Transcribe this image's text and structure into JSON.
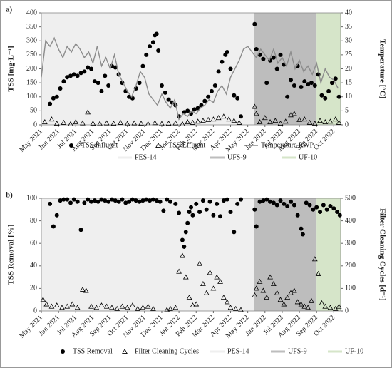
{
  "chart_data": [
    {
      "type": "combo",
      "label": "a)",
      "ylabel": "TSS [mg·L⁻¹]",
      "y2label": "Temperature [°C]",
      "xlim": [
        0,
        17.4
      ],
      "ylim": [
        0,
        400
      ],
      "yticks": [
        0,
        50,
        100,
        150,
        200,
        250,
        300,
        350,
        400
      ],
      "y2lim": [
        0,
        40
      ],
      "y2ticks": [
        0,
        5,
        10,
        15,
        20,
        25,
        30,
        35,
        40
      ],
      "xticks": [
        {
          "value": 0,
          "label": "May 2021"
        },
        {
          "value": 1,
          "label": "Jun 2021"
        },
        {
          "value": 2,
          "label": "Jul 2021"
        },
        {
          "value": 3,
          "label": "Aug 2021"
        },
        {
          "value": 4,
          "label": "Sep 2021"
        },
        {
          "value": 5,
          "label": "Oct 2021"
        },
        {
          "value": 6,
          "label": "Nov 2021"
        },
        {
          "value": 7,
          "label": "Dec 2021"
        },
        {
          "value": 8,
          "label": "Jan 2022"
        },
        {
          "value": 9,
          "label": "Feb 2022"
        },
        {
          "value": 10,
          "label": "Mar 2022"
        },
        {
          "value": 11,
          "label": "Apr 2022"
        },
        {
          "value": 12,
          "label": "May 2022"
        },
        {
          "value": 13,
          "label": "Jun 2022"
        },
        {
          "value": 14,
          "label": "Jul 2022"
        },
        {
          "value": 15,
          "label": "Aug 2022"
        },
        {
          "value": 16,
          "label": "Sep 2022"
        },
        {
          "value": 17,
          "label": "Oct 2022"
        }
      ],
      "regions": [
        {
          "name": "PES-14",
          "color": "#efefef",
          "start": 0,
          "end": 12.37
        },
        {
          "name": "UFS-9",
          "color": "#bdbdbd",
          "start": 12.37,
          "end": 16.0
        },
        {
          "name": "UF-10",
          "color": "#d6e5c9",
          "start": 16.0,
          "end": 17.4
        }
      ],
      "series": [
        {
          "name": "TSS Influent",
          "marker": "circle",
          "color": "#000000",
          "x": [
            0.5,
            0.7,
            0.9,
            1.1,
            1.3,
            1.5,
            1.7,
            1.9,
            2.1,
            2.3,
            2.5,
            2.7,
            2.9,
            3.1,
            3.3,
            3.5,
            3.7,
            3.9,
            4.1,
            4.3,
            4.5,
            4.7,
            4.9,
            5.1,
            5.3,
            5.5,
            5.7,
            5.9,
            6.1,
            6.3,
            6.5,
            6.6,
            6.7,
            6.8,
            7.0,
            7.2,
            7.4,
            7.6,
            7.8,
            8.0,
            8.3,
            8.5,
            8.7,
            8.9,
            9.1,
            9.3,
            9.5,
            9.7,
            9.9,
            10.1,
            10.3,
            10.5,
            10.7,
            10.8,
            11.0,
            11.2,
            11.4,
            11.6,
            12.4,
            12.5,
            12.7,
            12.9,
            13.1,
            13.3,
            13.5,
            13.7,
            13.9,
            14.1,
            14.3,
            14.5,
            14.7,
            14.9,
            15.1,
            15.3,
            15.5,
            15.7,
            15.9,
            16.1,
            16.3,
            16.5,
            16.7,
            16.9,
            17.1,
            17.3
          ],
          "values": [
            75,
            95,
            100,
            130,
            155,
            170,
            175,
            180,
            175,
            185,
            190,
            205,
            200,
            155,
            150,
            120,
            175,
            140,
            210,
            205,
            180,
            150,
            120,
            100,
            95,
            130,
            150,
            210,
            250,
            280,
            295,
            320,
            325,
            265,
            140,
            115,
            90,
            80,
            70,
            30,
            45,
            50,
            40,
            55,
            60,
            70,
            85,
            100,
            120,
            140,
            190,
            225,
            250,
            260,
            200,
            105,
            95,
            30,
            360,
            270,
            250,
            235,
            150,
            230,
            240,
            200,
            250,
            215,
            100,
            160,
            140,
            210,
            135,
            155,
            145,
            150,
            140,
            180,
            105,
            95,
            120,
            150,
            165,
            100
          ]
        },
        {
          "name": "TSS Effluent",
          "marker": "triangle",
          "color": "#000000",
          "x": [
            0.2,
            0.6,
            0.9,
            1.3,
            1.7,
            2.0,
            2.4,
            2.7,
            3.0,
            3.4,
            3.8,
            4.2,
            4.6,
            5.0,
            5.4,
            5.8,
            6.2,
            6.6,
            7.0,
            7.4,
            7.8,
            8.2,
            8.5,
            8.8,
            9.1,
            9.4,
            9.7,
            10.0,
            10.3,
            10.6,
            10.9,
            11.2,
            11.5,
            12.4,
            12.5,
            12.7,
            13.0,
            13.3,
            13.6,
            13.9,
            14.2,
            14.5,
            14.7,
            15.0,
            15.3,
            15.6,
            15.9,
            16.2,
            16.5,
            16.8,
            17.1,
            17.3
          ],
          "values": [
            10,
            20,
            5,
            8,
            3,
            10,
            6,
            45,
            5,
            4,
            6,
            5,
            8,
            4,
            6,
            5,
            3,
            7,
            4,
            5,
            6,
            3,
            10,
            8,
            12,
            15,
            18,
            20,
            25,
            30,
            20,
            15,
            8,
            65,
            40,
            10,
            25,
            10,
            15,
            5,
            12,
            35,
            40,
            18,
            20,
            8,
            5,
            15,
            10,
            12,
            20,
            8
          ]
        },
        {
          "name": "Temperature RWP",
          "marker": "line",
          "color": "#8c8c8c",
          "axis": "y2",
          "x": [
            0,
            0.25,
            0.5,
            0.75,
            1,
            1.25,
            1.5,
            1.75,
            2,
            2.25,
            2.5,
            2.75,
            3,
            3.25,
            3.5,
            3.75,
            4,
            4.25,
            4.5,
            4.75,
            5,
            5.25,
            5.5,
            5.75,
            6,
            6.25,
            6.5,
            6.75,
            7,
            7.25,
            7.5,
            7.75,
            8,
            8.25,
            8.5,
            8.75,
            9,
            9.25,
            9.5,
            9.75,
            10,
            10.25,
            10.5,
            10.75,
            11,
            11.25,
            11.5,
            11.75,
            12,
            12.25,
            12.5,
            12.75,
            13,
            13.25,
            13.5,
            13.75,
            14,
            14.25,
            14.5,
            14.75,
            15,
            15.25,
            15.5,
            15.75,
            16,
            16.25,
            16.5,
            16.75,
            17,
            17.25
          ],
          "values": [
            17,
            30,
            28,
            31,
            27,
            24,
            28,
            26,
            29,
            27,
            24,
            26,
            22,
            28,
            21,
            24,
            20,
            25,
            18,
            15,
            12,
            10,
            14,
            19,
            17,
            11,
            9,
            7,
            11,
            8,
            6,
            9,
            2,
            4,
            3,
            5,
            4,
            6,
            7,
            9,
            8,
            12,
            14,
            11,
            17,
            20,
            23,
            27,
            28,
            26,
            24,
            27,
            25,
            23,
            27,
            22,
            24,
            21,
            26,
            20,
            23,
            19,
            21,
            18,
            22,
            15,
            20,
            17,
            16,
            13
          ]
        }
      ]
    },
    {
      "type": "combo",
      "label": "b)",
      "ylabel": "TSS Removal [%]",
      "y2label": "Filter Cleaning Cycles [d⁻¹]",
      "xlim": [
        0,
        17.4
      ],
      "ylim": [
        0,
        100
      ],
      "yticks": [
        0,
        20,
        40,
        60,
        80,
        100
      ],
      "y2lim": [
        0,
        500
      ],
      "y2ticks": [
        0,
        100,
        200,
        300,
        400,
        500
      ],
      "xticks": [
        {
          "value": 0,
          "label": "May 2021"
        },
        {
          "value": 1,
          "label": "Jun 2021"
        },
        {
          "value": 2,
          "label": "Jul 2021"
        },
        {
          "value": 3,
          "label": "Aug 2021"
        },
        {
          "value": 4,
          "label": "Sep 2021"
        },
        {
          "value": 5,
          "label": "Oct 2021"
        },
        {
          "value": 6,
          "label": "Nov 2021"
        },
        {
          "value": 7,
          "label": "Dec 2021"
        },
        {
          "value": 8,
          "label": "Jan 2022"
        },
        {
          "value": 9,
          "label": "Feb 2022"
        },
        {
          "value": 10,
          "label": "Mar 2022"
        },
        {
          "value": 11,
          "label": "Apr 2022"
        },
        {
          "value": 12,
          "label": "May 2022"
        },
        {
          "value": 13,
          "label": "Jun 2022"
        },
        {
          "value": 14,
          "label": "Jul 2022"
        },
        {
          "value": 15,
          "label": "Aug 2022"
        },
        {
          "value": 16,
          "label": "Sep 2022"
        },
        {
          "value": 17,
          "label": "Oct 2022"
        }
      ],
      "regions": [
        {
          "name": "PES-14",
          "color": "#efefef",
          "start": 0,
          "end": 12.37
        },
        {
          "name": "UFS-9",
          "color": "#bdbdbd",
          "start": 12.37,
          "end": 16.0
        },
        {
          "name": "UF-10",
          "color": "#d6e5c9",
          "start": 16.0,
          "end": 17.4
        }
      ],
      "series": [
        {
          "name": "TSS Removal",
          "marker": "circle",
          "color": "#000000",
          "x": [
            0.5,
            0.7,
            0.9,
            1.1,
            1.3,
            1.5,
            1.7,
            1.9,
            2.1,
            2.3,
            2.5,
            2.7,
            2.9,
            3.1,
            3.3,
            3.5,
            3.7,
            3.9,
            4.1,
            4.3,
            4.5,
            4.7,
            4.9,
            5.1,
            5.3,
            5.5,
            5.7,
            5.9,
            6.1,
            6.3,
            6.5,
            6.7,
            6.9,
            7.1,
            7.3,
            7.5,
            7.8,
            8.0,
            8.2,
            8.3,
            8.4,
            8.5,
            8.6,
            8.7,
            8.8,
            9.0,
            9.2,
            9.4,
            9.6,
            9.8,
            10.0,
            10.2,
            10.4,
            10.6,
            10.8,
            11.0,
            11.2,
            11.4,
            11.6,
            12.4,
            12.5,
            12.7,
            12.9,
            13.1,
            13.3,
            13.5,
            13.7,
            13.9,
            14.1,
            14.3,
            14.5,
            14.7,
            14.9,
            15.1,
            15.2,
            15.4,
            15.6,
            15.8,
            16.0,
            16.2,
            16.4,
            16.6,
            16.8,
            17.0,
            17.2,
            17.35
          ],
          "values": [
            95,
            75,
            85,
            98,
            99,
            99,
            96,
            99,
            97,
            72,
            96,
            99,
            97,
            98,
            97,
            99,
            98,
            97,
            99,
            98,
            97,
            99,
            96,
            97,
            99,
            98,
            97,
            98,
            99,
            98,
            99,
            98,
            97,
            89,
            99,
            97,
            95,
            87,
            63,
            57,
            70,
            78,
            88,
            92,
            85,
            95,
            88,
            98,
            90,
            97,
            85,
            95,
            84,
            98,
            99,
            88,
            70,
            95,
            99,
            90,
            75,
            97,
            98,
            99,
            97,
            96,
            94,
            98,
            95,
            93,
            97,
            94,
            85,
            73,
            68,
            96,
            94,
            90,
            92,
            88,
            94,
            90,
            93,
            91,
            88,
            85
          ]
        },
        {
          "name": "Filter Cleaning Cycles",
          "marker": "triangle",
          "color": "#000000",
          "axis": "y2",
          "x": [
            0.1,
            0.3,
            0.6,
            0.9,
            1.2,
            1.5,
            1.8,
            2.1,
            2.4,
            2.6,
            2.9,
            3.2,
            3.5,
            3.8,
            4.1,
            4.4,
            4.7,
            5.0,
            5.3,
            5.6,
            5.9,
            6.2,
            6.5,
            7.3,
            7.5,
            7.8,
            8.0,
            8.2,
            8.4,
            8.6,
            8.8,
            9.0,
            9.2,
            9.4,
            9.6,
            9.8,
            10.0,
            10.2,
            10.4,
            10.6,
            10.8,
            11.0,
            11.3,
            11.6,
            12.4,
            12.5,
            12.7,
            12.9,
            13.1,
            13.3,
            13.5,
            13.7,
            13.9,
            14.1,
            14.3,
            14.5,
            14.7,
            14.9,
            15.1,
            15.3,
            15.5,
            15.7,
            15.9,
            16.1,
            16.3,
            16.5,
            16.8,
            17.1,
            17.3
          ],
          "values": [
            50,
            30,
            20,
            25,
            15,
            20,
            30,
            15,
            95,
            90,
            20,
            15,
            25,
            20,
            15,
            10,
            20,
            15,
            25,
            10,
            15,
            20,
            10,
            5,
            10,
            15,
            175,
            245,
            150,
            60,
            25,
            30,
            210,
            120,
            80,
            170,
            100,
            150,
            130,
            60,
            40,
            15,
            10,
            5,
            70,
            100,
            130,
            90,
            60,
            150,
            120,
            80,
            50,
            30,
            60,
            80,
            90,
            40,
            30,
            20,
            15,
            45,
            230,
            165,
            35,
            20,
            15,
            10,
            20
          ]
        }
      ]
    }
  ]
}
